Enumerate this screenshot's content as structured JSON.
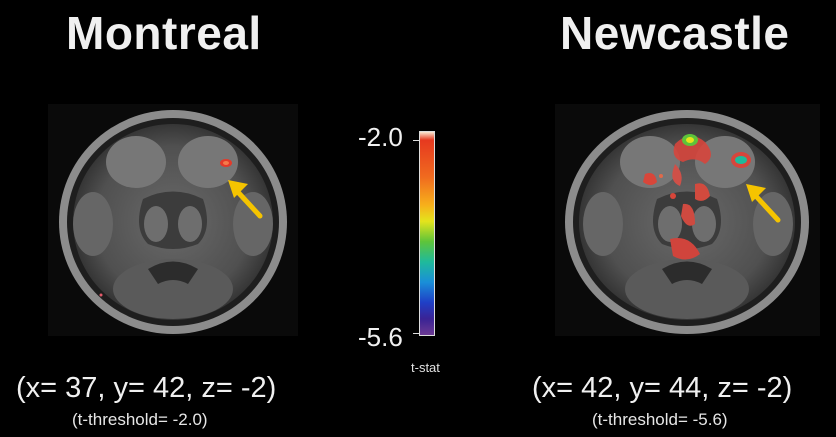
{
  "panels": [
    {
      "title": "Montreal",
      "coords": "(x= 37, y= 42, z= -2)",
      "threshold": "(t-threshold= -2.0)"
    },
    {
      "title": "Newcastle",
      "coords": "(x= 42, y= 44, z= -2)",
      "threshold": "(t-threshold= -5.6)"
    }
  ],
  "colorbar": {
    "max_label": "-2.0",
    "min_label": "-5.6",
    "unit_label": "t-stat",
    "colors": [
      "#e6391f",
      "#f7b01b",
      "#e4e41c",
      "#5ec43a",
      "#1fba9b",
      "#1a8fd8",
      "#1f3fc6",
      "#6c3a93"
    ]
  },
  "arrow_color": "#f5c400",
  "background": "#000000"
}
